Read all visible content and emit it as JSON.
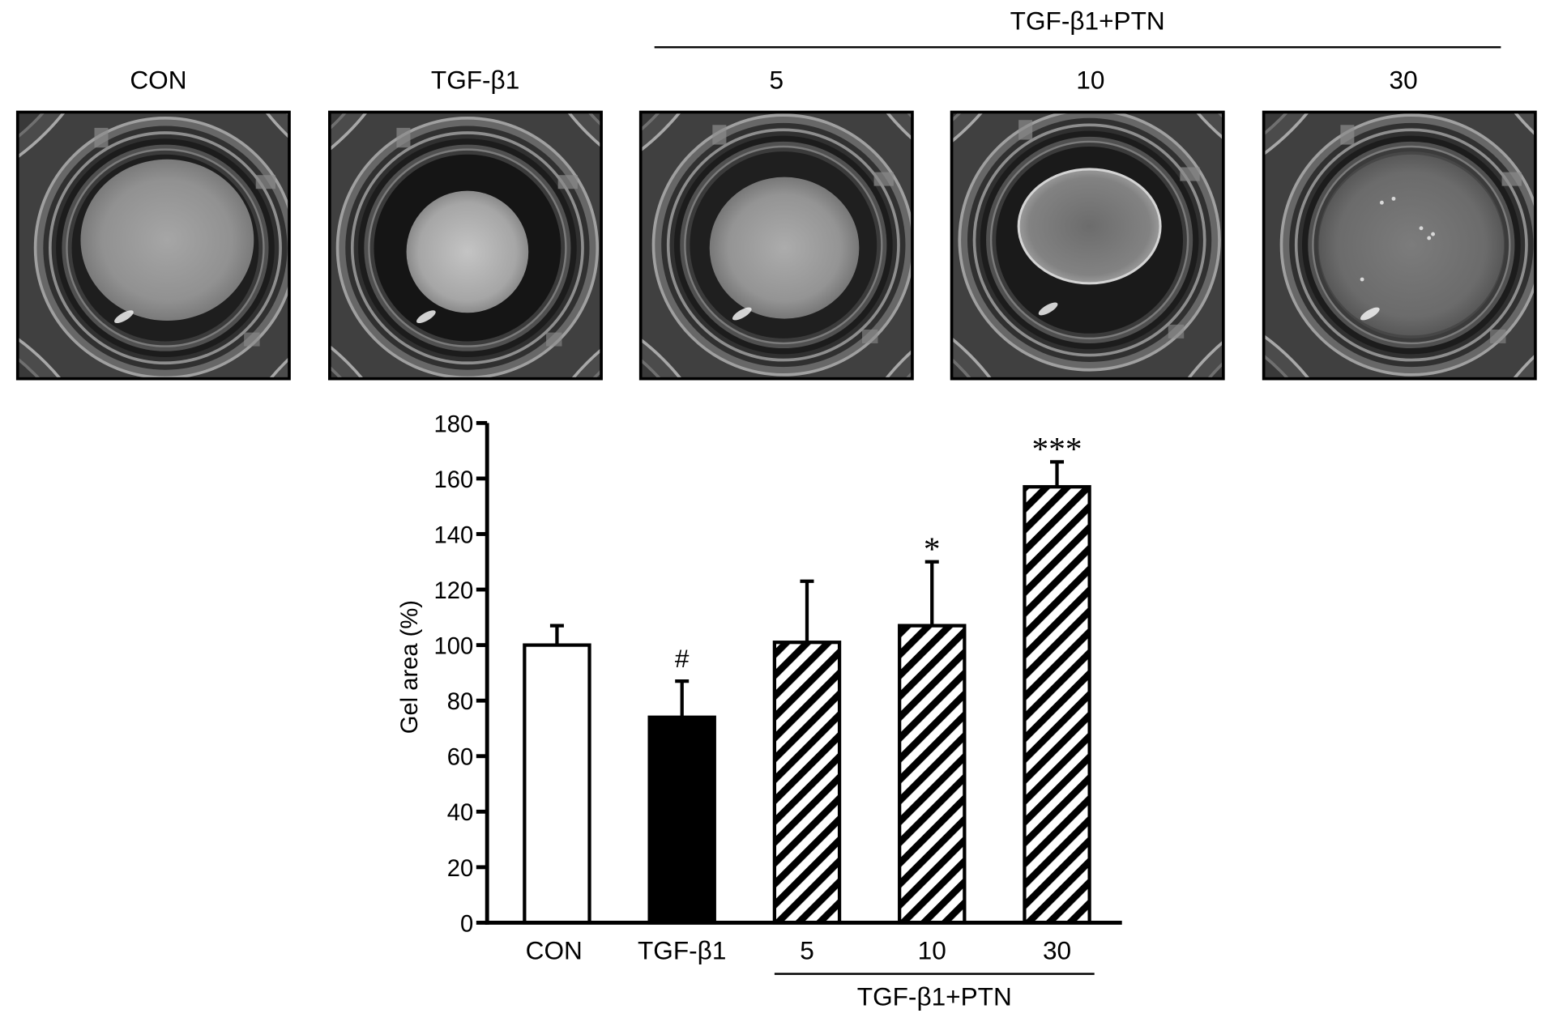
{
  "figure": {
    "group_label": "TGF-β1+PTN",
    "photo_labels": [
      "CON",
      "TGF-β1",
      "5",
      "10",
      "30"
    ]
  },
  "chart_data": {
    "type": "bar",
    "categories": [
      "CON",
      "TGF-β1",
      "5",
      "10",
      "30"
    ],
    "values": [
      100,
      74,
      101,
      107,
      157
    ],
    "error_upper": [
      7,
      13,
      22,
      23,
      9
    ],
    "bar_colors": [
      "#ffffff",
      "#000000",
      "#ffffff",
      "#ffffff",
      "#ffffff"
    ],
    "hatched": [
      false,
      false,
      true,
      true,
      true
    ],
    "annotations": [
      {
        "category": "TGF-β1",
        "text": "#"
      },
      {
        "category": "10",
        "text": "*"
      },
      {
        "category": "30",
        "text": "***"
      }
    ],
    "group": {
      "label": "TGF-β1+PTN",
      "members": [
        "5",
        "10",
        "30"
      ]
    },
    "xlabel": "",
    "ylabel": "Gel area (%)",
    "ylim": [
      0,
      180
    ],
    "yticks": [
      0,
      20,
      40,
      60,
      80,
      100,
      120,
      140,
      160,
      180
    ],
    "grid": false
  }
}
